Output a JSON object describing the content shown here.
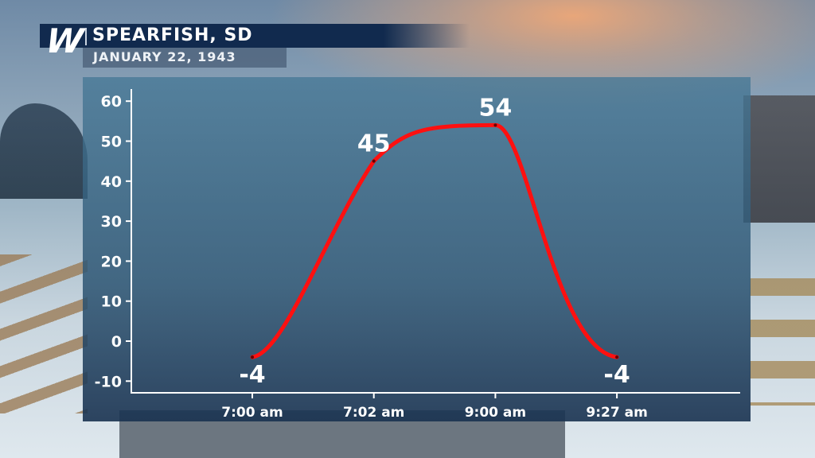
{
  "header": {
    "logo": "W",
    "title": "SPEARFISH, SD",
    "subtitle": "JANUARY 22, 1943"
  },
  "chart_data": {
    "type": "line",
    "title": "SPEARFISH, SD",
    "subtitle": "JANUARY 22, 1943",
    "categories": [
      "7:00 am",
      "7:02 am",
      "9:00 am",
      "9:27 am"
    ],
    "values": [
      -4,
      45,
      54,
      -4
    ],
    "data_labels": [
      "-4",
      "45",
      "54",
      "-4"
    ],
    "ylim": [
      -10,
      60
    ],
    "yticks": [
      60,
      50,
      40,
      30,
      20,
      10,
      0,
      -10
    ],
    "grid": false,
    "line_color": "#ff1010",
    "xlabel": "",
    "ylabel": ""
  }
}
